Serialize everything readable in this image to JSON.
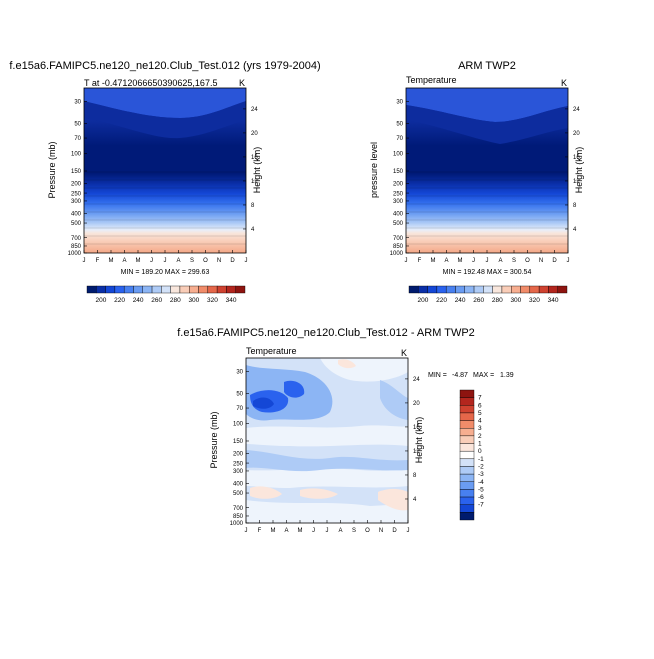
{
  "chart_data": [
    {
      "type": "heatmap",
      "title": "f.e15a6.FAMIPC5.ne120_ne120.Club_Test.012 (yrs 1979-2004)",
      "subtitle_left": "T at -0.4712066650390625,167.5",
      "subtitle_right": "K",
      "ylabel": "Pressure (mb)",
      "ylabel_right": "Height (km)",
      "x_ticks": [
        "J",
        "F",
        "M",
        "A",
        "M",
        "J",
        "J",
        "A",
        "S",
        "O",
        "N",
        "D",
        "J"
      ],
      "y_ticks": [
        "30",
        "50",
        "70",
        "100",
        "150",
        "200",
        "250",
        "300",
        "400",
        "500",
        "700",
        "850",
        "1000"
      ],
      "y_ticks_right": [
        "24",
        "20",
        "16",
        "12",
        "8",
        "4"
      ],
      "minmax_label": "MIN = 189.20  MAX = 299.63",
      "min": 189.2,
      "max": 299.63
    },
    {
      "type": "heatmap",
      "title": "ARM TWP2",
      "subtitle_left": "Temperature",
      "subtitle_right": "K",
      "ylabel": "pressure level",
      "ylabel_right": "Height (km)",
      "x_ticks": [
        "J",
        "F",
        "M",
        "A",
        "M",
        "J",
        "J",
        "A",
        "S",
        "O",
        "N",
        "D",
        "J"
      ],
      "y_ticks": [
        "30",
        "50",
        "70",
        "100",
        "150",
        "200",
        "250",
        "300",
        "400",
        "500",
        "700",
        "850",
        "1000"
      ],
      "y_ticks_right": [
        "24",
        "20",
        "16",
        "12",
        "8",
        "4"
      ],
      "minmax_label": "MIN = 192.48  MAX = 300.54",
      "min": 192.48,
      "max": 300.54
    },
    {
      "type": "heatmap",
      "title": "f.e15a6.FAMIPC5.ne120_ne120.Club_Test.012 - ARM TWP2",
      "subtitle_left": "Temperature",
      "subtitle_right": "K",
      "ylabel": "Pressure (mb)",
      "ylabel_right": "Height (km)",
      "x_ticks": [
        "J",
        "F",
        "M",
        "A",
        "M",
        "J",
        "J",
        "A",
        "S",
        "O",
        "N",
        "D",
        "J"
      ],
      "y_ticks": [
        "30",
        "50",
        "70",
        "100",
        "150",
        "200",
        "250",
        "300",
        "400",
        "500",
        "700",
        "850",
        "1000"
      ],
      "y_ticks_right": [
        "24",
        "20",
        "16",
        "12",
        "8",
        "4"
      ],
      "min_label": "MIN =",
      "min_value": "-4.87",
      "max_label": "MAX =",
      "max_value": "1.39",
      "min": -4.87,
      "max": 1.39
    }
  ],
  "colorbar_top": {
    "labels": [
      "200",
      "220",
      "240",
      "260",
      "280",
      "300",
      "320",
      "340"
    ],
    "colors": [
      "#001b6e",
      "#0a2fa8",
      "#1447d6",
      "#2a62ee",
      "#4880f0",
      "#6a9cf2",
      "#8cb5f4",
      "#aecbf6",
      "#d3e2f8",
      "#f8e6dc",
      "#f9cdb8",
      "#f7ae90",
      "#f18c6a",
      "#e5674a",
      "#cf4230",
      "#b3261e",
      "#8e1410"
    ]
  },
  "colorbar_diff": {
    "labels": [
      "7",
      "6",
      "5",
      "4",
      "3",
      "2",
      "1",
      "0",
      "-1",
      "-2",
      "-3",
      "-4",
      "-5",
      "-6",
      "-7"
    ],
    "colors": [
      "#8e1410",
      "#b3261e",
      "#cf4230",
      "#e5674a",
      "#f18c6a",
      "#f7ae90",
      "#f9cdb8",
      "#fbe6dc",
      "#ffffff",
      "#d3e2f8",
      "#aecbf6",
      "#8cb5f4",
      "#6a9cf2",
      "#4880f0",
      "#2a62ee",
      "#1447d6",
      "#001b6e"
    ]
  }
}
